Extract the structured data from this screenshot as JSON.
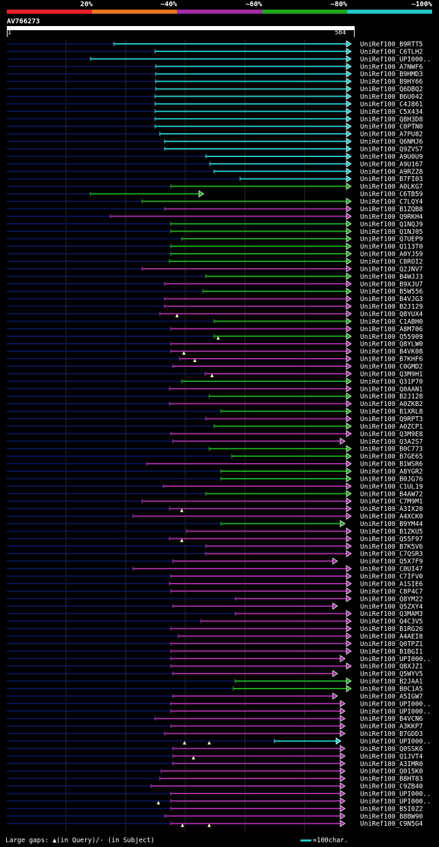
{
  "legend": {
    "labels": [
      "20%",
      "~40%",
      "~60%",
      "~80%",
      "~100%"
    ],
    "colors": [
      "#e8202a",
      "#e8771f",
      "#a02ea0",
      "#1fa61f",
      "#24c6c8"
    ]
  },
  "query": {
    "name": "AV766273",
    "start": "1",
    "end": "584"
  },
  "footer": {
    "gaps_text": "Large gaps: ▲(in Query)/- (in Subject)",
    "scale_text": "=100char."
  },
  "colors": {
    "cyan": "#24c6c8",
    "green": "#1fa61f",
    "magenta": "#a02ea0",
    "trail": "#0c1a6a"
  },
  "hits": [
    {
      "name": "UniRef100_B9RTT5",
      "c": "cyan",
      "s": 166,
      "e": 511
    },
    {
      "name": "UniRef100_C6TLH2",
      "c": "cyan",
      "s": 226,
      "e": 511
    },
    {
      "name": "UniRef100_UPI000..",
      "c": "cyan",
      "s": 132,
      "e": 511
    },
    {
      "name": "UniRef100_A7NWF6",
      "c": "cyan",
      "s": 227,
      "e": 511
    },
    {
      "name": "UniRef100_B9HMD3",
      "c": "cyan",
      "s": 227,
      "e": 511
    },
    {
      "name": "UniRef100_B9HY66",
      "c": "cyan",
      "s": 227,
      "e": 511
    },
    {
      "name": "UniRef100_Q6DBQ2",
      "c": "cyan",
      "s": 227,
      "e": 511
    },
    {
      "name": "UniRef100_B6U042",
      "c": "cyan",
      "s": 226,
      "e": 511
    },
    {
      "name": "UniRef100_C4J861",
      "c": "cyan",
      "s": 226,
      "e": 511
    },
    {
      "name": "UniRef100_C5X434",
      "c": "cyan",
      "s": 226,
      "e": 511
    },
    {
      "name": "UniRef100_Q8H3D8",
      "c": "cyan",
      "s": 226,
      "e": 511
    },
    {
      "name": "UniRef100_C0PTN0",
      "c": "cyan",
      "s": 226,
      "e": 511
    },
    {
      "name": "UniRef100_A7PU82",
      "c": "cyan",
      "s": 233,
      "e": 511
    },
    {
      "name": "UniRef100_Q6NMJ6",
      "c": "cyan",
      "s": 240,
      "e": 511
    },
    {
      "name": "UniRef100_Q9ZVS7",
      "c": "cyan",
      "s": 240,
      "e": 511
    },
    {
      "name": "UniRef100_A9U0U9",
      "c": "cyan",
      "s": 300,
      "e": 511
    },
    {
      "name": "UniRef100_A9U167",
      "c": "cyan",
      "s": 306,
      "e": 511
    },
    {
      "name": "UniRef100_A9RZZ8",
      "c": "cyan",
      "s": 312,
      "e": 511
    },
    {
      "name": "UniRef100_B7FI03",
      "c": "cyan",
      "s": 350,
      "e": 511
    },
    {
      "name": "UniRef100_A0LKG7",
      "c": "green",
      "s": 249,
      "e": 511
    },
    {
      "name": "UniRef100_C6TB59",
      "c": "green",
      "s": 132,
      "e": 296
    },
    {
      "name": "UniRef100_C7LQY4",
      "c": "green",
      "s": 207,
      "e": 511
    },
    {
      "name": "UniRef100_B1ZQB8",
      "c": "magenta",
      "s": 240,
      "e": 511
    },
    {
      "name": "UniRef100_Q9RKH4",
      "c": "magenta",
      "s": 161,
      "e": 511
    },
    {
      "name": "UniRef100_Q1NQJ9",
      "c": "green",
      "s": 249,
      "e": 511
    },
    {
      "name": "UniRef100_Q1NJ05",
      "c": "green",
      "s": 249,
      "e": 511
    },
    {
      "name": "UniRef100_Q7UEP9",
      "c": "green",
      "s": 265,
      "e": 511
    },
    {
      "name": "UniRef100_Q113T0",
      "c": "green",
      "s": 249,
      "e": 511
    },
    {
      "name": "UniRef100_A0YJ59",
      "c": "green",
      "s": 249,
      "e": 511
    },
    {
      "name": "UniRef100_C8ROI2",
      "c": "green",
      "s": 247,
      "e": 511
    },
    {
      "name": "UniRef100_Q2JNV7",
      "c": "magenta",
      "s": 207,
      "e": 511
    },
    {
      "name": "UniRef100_B4WJJ3",
      "c": "green",
      "s": 300,
      "e": 511
    },
    {
      "name": "UniRef100_B9XJU7",
      "c": "magenta",
      "s": 240,
      "e": 511
    },
    {
      "name": "UniRef100_B5W556",
      "c": "green",
      "s": 296,
      "e": 511
    },
    {
      "name": "UniRef100_B4VJG3",
      "c": "magenta",
      "s": 240,
      "e": 511
    },
    {
      "name": "UniRef100_B2J129",
      "c": "magenta",
      "s": 240,
      "e": 511
    },
    {
      "name": "UniRef100_Q8YUX4",
      "c": "magenta",
      "s": 233,
      "e": 511
    },
    {
      "name": "UniRef100_C1ABH0",
      "c": "green",
      "s": 312,
      "e": 511
    },
    {
      "name": "UniRef100_A8M706",
      "c": "magenta",
      "s": 249,
      "e": 511
    },
    {
      "name": "UniRef100_Q55909",
      "c": "green",
      "s": 312,
      "e": 511
    },
    {
      "name": "UniRef100_Q8YLW0",
      "c": "magenta",
      "s": 249,
      "e": 511
    },
    {
      "name": "UniRef100_B4VK08",
      "c": "magenta",
      "s": 249,
      "e": 511
    },
    {
      "name": "UniRef100_B7KHF6",
      "c": "magenta",
      "s": 262,
      "e": 511
    },
    {
      "name": "UniRef100_C0GMD2",
      "c": "magenta",
      "s": 252,
      "e": 511
    },
    {
      "name": "UniRef100_Q3M9H1",
      "c": "magenta",
      "s": 299,
      "e": 511
    },
    {
      "name": "UniRef100_Q31P70",
      "c": "green",
      "s": 265,
      "e": 511
    },
    {
      "name": "UniRef100_Q0AAN1",
      "c": "magenta",
      "s": 247,
      "e": 511
    },
    {
      "name": "UniRef100_B2J128",
      "c": "green",
      "s": 305,
      "e": 511
    },
    {
      "name": "UniRef100_A0ZKB2",
      "c": "magenta",
      "s": 247,
      "e": 511
    },
    {
      "name": "UniRef100_B1XRL8",
      "c": "green",
      "s": 322,
      "e": 511
    },
    {
      "name": "UniRef100_Q9RPT3",
      "c": "magenta",
      "s": 300,
      "e": 511
    },
    {
      "name": "UniRef100_A0ZCP1",
      "c": "green",
      "s": 312,
      "e": 511
    },
    {
      "name": "UniRef100_Q3M9E8",
      "c": "magenta",
      "s": 249,
      "e": 511
    },
    {
      "name": "UniRef100_Q3A2S7",
      "c": "magenta",
      "s": 252,
      "e": 502
    },
    {
      "name": "UniRef100_B0C773",
      "c": "green",
      "s": 305,
      "e": 511
    },
    {
      "name": "UniRef100_B7GE65",
      "c": "green",
      "s": 338,
      "e": 511
    },
    {
      "name": "UniRef100_B1WSR6",
      "c": "magenta",
      "s": 214,
      "e": 511
    },
    {
      "name": "UniRef100_A8YGR2",
      "c": "green",
      "s": 322,
      "e": 511
    },
    {
      "name": "UniRef100_B0JG76",
      "c": "green",
      "s": 322,
      "e": 511
    },
    {
      "name": "UniRef100_C1UL19",
      "c": "magenta",
      "s": 238,
      "e": 511
    },
    {
      "name": "UniRef100_B4AW72",
      "c": "green",
      "s": 300,
      "e": 511
    },
    {
      "name": "UniRef100_C7M9M1",
      "c": "magenta",
      "s": 207,
      "e": 511
    },
    {
      "name": "UniRef100_A3IX20",
      "c": "magenta",
      "s": 247,
      "e": 511
    },
    {
      "name": "UniRef100_A4XCK0",
      "c": "magenta",
      "s": 194,
      "e": 511
    },
    {
      "name": "UniRef100_B9YM44",
      "c": "green",
      "s": 322,
      "e": 502
    },
    {
      "name": "UniRef100_B1ZKU5",
      "c": "magenta",
      "s": 272,
      "e": 511
    },
    {
      "name": "UniRef100_Q55F97",
      "c": "magenta",
      "s": 247,
      "e": 511
    },
    {
      "name": "UniRef100_B7K5V6",
      "c": "magenta",
      "s": 300,
      "e": 511
    },
    {
      "name": "UniRef100_C7QSR3",
      "c": "magenta",
      "s": 300,
      "e": 511
    },
    {
      "name": "UniRef100_Q5X7F9",
      "c": "magenta",
      "s": 252,
      "e": 491
    },
    {
      "name": "UniRef100_C0UI47",
      "c": "magenta",
      "s": 194,
      "e": 511
    },
    {
      "name": "UniRef100_C7IFV0",
      "c": "magenta",
      "s": 249,
      "e": 511
    },
    {
      "name": "UniRef100_A1SIE6",
      "c": "magenta",
      "s": 247,
      "e": 511
    },
    {
      "name": "UniRef100_C8P4C7",
      "c": "magenta",
      "s": 249,
      "e": 511
    },
    {
      "name": "UniRef100_Q8YM22",
      "c": "magenta",
      "s": 343,
      "e": 511
    },
    {
      "name": "UniRef100_Q5ZXY4",
      "c": "magenta",
      "s": 252,
      "e": 491
    },
    {
      "name": "UniRef100_Q3MAM3",
      "c": "magenta",
      "s": 343,
      "e": 511
    },
    {
      "name": "UniRef100_Q4C3V5",
      "c": "magenta",
      "s": 293,
      "e": 511
    },
    {
      "name": "UniRef100_B1RG26",
      "c": "magenta",
      "s": 249,
      "e": 511
    },
    {
      "name": "UniRef100_A4AEI8",
      "c": "magenta",
      "s": 260,
      "e": 511
    },
    {
      "name": "UniRef100_Q0TPZ1",
      "c": "magenta",
      "s": 249,
      "e": 511
    },
    {
      "name": "UniRef100_B1BGI1",
      "c": "magenta",
      "s": 249,
      "e": 511
    },
    {
      "name": "UniRef100_UPI000..",
      "c": "magenta",
      "s": 249,
      "e": 502
    },
    {
      "name": "UniRef100_Q8XJZ1",
      "c": "magenta",
      "s": 249,
      "e": 511
    },
    {
      "name": "UniRef100_Q5WYV5",
      "c": "magenta",
      "s": 252,
      "e": 491
    },
    {
      "name": "UniRef100_B2JAA1",
      "c": "green",
      "s": 343,
      "e": 511
    },
    {
      "name": "UniRef100_B0C1A5",
      "c": "green",
      "s": 340,
      "e": 511
    },
    {
      "name": "UniRef100_A5IGW7",
      "c": "magenta",
      "s": 252,
      "e": 491
    },
    {
      "name": "UniRef100_UPI000..",
      "c": "magenta",
      "s": 249,
      "e": 502
    },
    {
      "name": "UniRef100_UPI000..",
      "c": "magenta",
      "s": 249,
      "e": 502
    },
    {
      "name": "UniRef100_B4VCN6",
      "c": "magenta",
      "s": 226,
      "e": 502
    },
    {
      "name": "UniRef100_A3KKP7",
      "c": "magenta",
      "s": 249,
      "e": 502
    },
    {
      "name": "UniRef100_B7GDD3",
      "c": "magenta",
      "s": 240,
      "e": 502
    },
    {
      "name": "UniRef100_UPI000..",
      "c": "cyan",
      "s": 400,
      "e": 496
    },
    {
      "name": "UniRef100_Q0SSK6",
      "c": "magenta",
      "s": 252,
      "e": 502
    },
    {
      "name": "UniRef100_Q1JVT4",
      "c": "magenta",
      "s": 252,
      "e": 502
    },
    {
      "name": "UniRef100_A3IMR0",
      "c": "magenta",
      "s": 252,
      "e": 502
    },
    {
      "name": "UniRef100_Q015K0",
      "c": "magenta",
      "s": 235,
      "e": 502
    },
    {
      "name": "UniRef100_B8HT83",
      "c": "magenta",
      "s": 233,
      "e": 502
    },
    {
      "name": "UniRef100_C9ZB40",
      "c": "magenta",
      "s": 220,
      "e": 502
    },
    {
      "name": "UniRef100_UPI000..",
      "c": "magenta",
      "s": 249,
      "e": 502
    },
    {
      "name": "UniRef100_UPI000..",
      "c": "magenta",
      "s": 249,
      "e": 502
    },
    {
      "name": "UniRef100_B5I0Z2",
      "c": "magenta",
      "s": 249,
      "e": 502
    },
    {
      "name": "UniRef100_B8BW90",
      "c": "magenta",
      "s": 240,
      "e": 502
    },
    {
      "name": "UniRef100_C9N5G4",
      "c": "magenta",
      "s": 249,
      "e": 502
    }
  ],
  "query_gap_marks": [
    {
      "row": 36,
      "x": 258
    },
    {
      "row": 39,
      "x": 318
    },
    {
      "row": 41,
      "x": 268
    },
    {
      "row": 42,
      "x": 284
    },
    {
      "row": 44,
      "x": 309
    },
    {
      "row": 62,
      "x": 265
    },
    {
      "row": 66,
      "x": 265
    },
    {
      "row": 93,
      "x": 269
    },
    {
      "row": 93,
      "x": 305
    },
    {
      "row": 95,
      "x": 282
    },
    {
      "row": 101,
      "x": 231
    },
    {
      "row": 104,
      "x": 266
    },
    {
      "row": 104,
      "x": 305
    }
  ]
}
